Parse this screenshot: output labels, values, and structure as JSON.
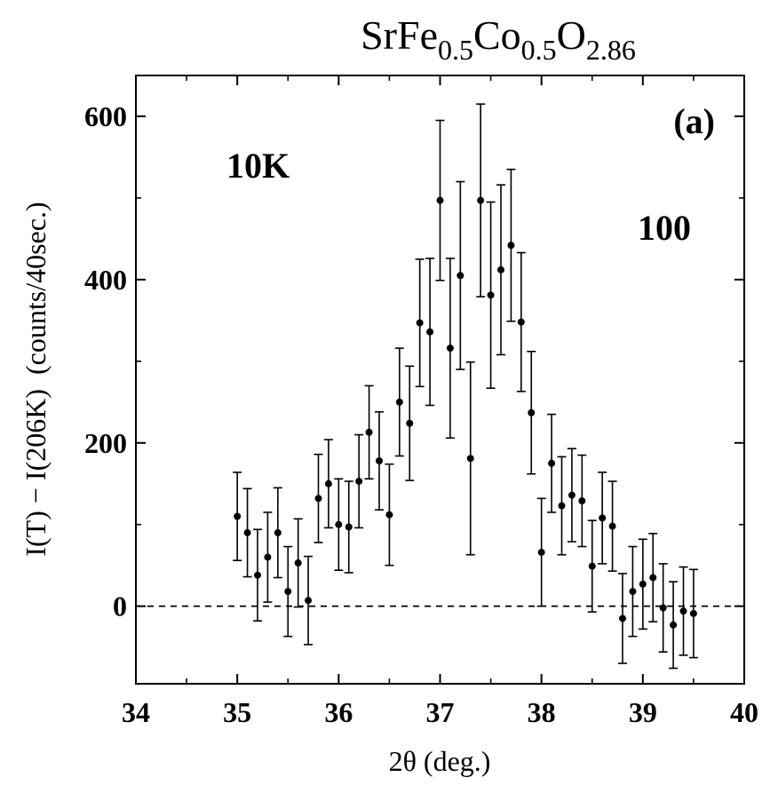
{
  "chart_data": {
    "type": "scatter",
    "title_parts": [
      "SrFe",
      "0.5",
      "Co",
      "0.5",
      "O",
      "2.86"
    ],
    "xlabel": "2θ (deg.)",
    "ylabel": "I(T) − I(206K)  (counts/40sec.)",
    "xlim": [
      34,
      40
    ],
    "ylim": [
      -95,
      650
    ],
    "xticks": [
      34,
      35,
      36,
      37,
      38,
      39,
      40
    ],
    "yticks": [
      0,
      200,
      400,
      600
    ],
    "reference_line": {
      "y": 0,
      "style": "dashed"
    },
    "annotations": {
      "panel": "(a)",
      "temperature": "10K",
      "reflection": "100"
    },
    "grid": false,
    "series": [
      {
        "marker": "filled-circle",
        "error_bars": true,
        "points": [
          {
            "x": 35.0,
            "y": 110,
            "err": 54
          },
          {
            "x": 35.1,
            "y": 90,
            "err": 54
          },
          {
            "x": 35.2,
            "y": 38,
            "err": 56
          },
          {
            "x": 35.3,
            "y": 60,
            "err": 55
          },
          {
            "x": 35.4,
            "y": 90,
            "err": 55
          },
          {
            "x": 35.5,
            "y": 18,
            "err": 55
          },
          {
            "x": 35.6,
            "y": 53,
            "err": 54
          },
          {
            "x": 35.7,
            "y": 7,
            "err": 54
          },
          {
            "x": 35.8,
            "y": 132,
            "err": 54
          },
          {
            "x": 35.9,
            "y": 150,
            "err": 54
          },
          {
            "x": 36.0,
            "y": 100,
            "err": 56
          },
          {
            "x": 36.1,
            "y": 97,
            "err": 56
          },
          {
            "x": 36.2,
            "y": 153,
            "err": 57
          },
          {
            "x": 36.3,
            "y": 213,
            "err": 57
          },
          {
            "x": 36.4,
            "y": 178,
            "err": 60
          },
          {
            "x": 36.5,
            "y": 112,
            "err": 62
          },
          {
            "x": 36.6,
            "y": 250,
            "err": 66
          },
          {
            "x": 36.7,
            "y": 224,
            "err": 70
          },
          {
            "x": 36.8,
            "y": 347,
            "err": 78
          },
          {
            "x": 36.9,
            "y": 336,
            "err": 90
          },
          {
            "x": 37.0,
            "y": 497,
            "err": 98
          },
          {
            "x": 37.1,
            "y": 316,
            "err": 110
          },
          {
            "x": 37.2,
            "y": 405,
            "err": 115
          },
          {
            "x": 37.3,
            "y": 181,
            "err": 118
          },
          {
            "x": 37.4,
            "y": 497,
            "err": 118
          },
          {
            "x": 37.5,
            "y": 381,
            "err": 114
          },
          {
            "x": 37.6,
            "y": 412,
            "err": 104
          },
          {
            "x": 37.7,
            "y": 442,
            "err": 93
          },
          {
            "x": 37.8,
            "y": 348,
            "err": 85
          },
          {
            "x": 37.9,
            "y": 237,
            "err": 75
          },
          {
            "x": 38.0,
            "y": 66,
            "err": 66
          },
          {
            "x": 38.1,
            "y": 175,
            "err": 60
          },
          {
            "x": 38.2,
            "y": 123,
            "err": 60
          },
          {
            "x": 38.3,
            "y": 136,
            "err": 57
          },
          {
            "x": 38.4,
            "y": 129,
            "err": 56
          },
          {
            "x": 38.5,
            "y": 49,
            "err": 56
          },
          {
            "x": 38.6,
            "y": 108,
            "err": 56
          },
          {
            "x": 38.7,
            "y": 98,
            "err": 55
          },
          {
            "x": 38.8,
            "y": -15,
            "err": 55
          },
          {
            "x": 38.9,
            "y": 18,
            "err": 55
          },
          {
            "x": 39.0,
            "y": 27,
            "err": 55
          },
          {
            "x": 39.1,
            "y": 35,
            "err": 54
          },
          {
            "x": 39.2,
            "y": -2,
            "err": 54
          },
          {
            "x": 39.3,
            "y": -23,
            "err": 53
          },
          {
            "x": 39.4,
            "y": -6,
            "err": 54
          },
          {
            "x": 39.5,
            "y": -9,
            "err": 54
          }
        ]
      }
    ]
  }
}
